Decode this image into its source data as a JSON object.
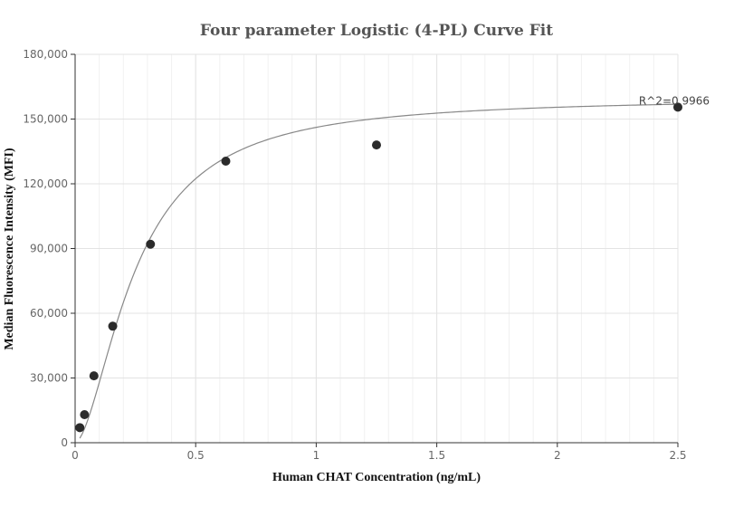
{
  "chart_data": {
    "type": "scatter",
    "title": "Four parameter Logistic (4-PL) Curve Fit",
    "xlabel": "Human CHAT Concentration (ng/mL)",
    "ylabel": "Median Fluorescence Intensity (MFI)",
    "xlim": [
      0,
      2.5
    ],
    "ylim": [
      0,
      180000
    ],
    "x_ticks": [
      0,
      0.5,
      1,
      1.5,
      2,
      2.5
    ],
    "x_tick_labels": [
      "0",
      "0.5",
      "1",
      "1.5",
      "2",
      "2.5"
    ],
    "y_ticks": [
      0,
      30000,
      60000,
      90000,
      120000,
      150000,
      180000
    ],
    "y_tick_labels": [
      "0",
      "30,000",
      "60,000",
      "90,000",
      "120,000",
      "150,000",
      "180,000"
    ],
    "grid": true,
    "series": [
      {
        "x": [
          0.0195,
          0.039,
          0.078,
          0.156,
          0.3125,
          0.625,
          1.25,
          2.5
        ],
        "y": [
          7000,
          13000,
          31000,
          54000,
          92000,
          130500,
          138000,
          155500
        ]
      }
    ],
    "fit_curve": {
      "model": "4PL",
      "bottom": 0,
      "top": 160000,
      "ec50": 0.25,
      "hill": 1.7
    },
    "annotations": [
      {
        "text": "R^2=0.9966",
        "x": 2.5,
        "y": 155500
      }
    ]
  }
}
